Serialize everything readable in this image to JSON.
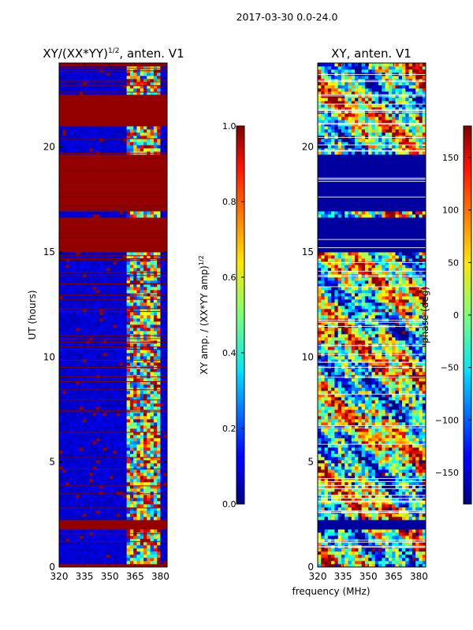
{
  "figure": {
    "suptitle": "2017-03-30 0.0-24.0",
    "xlabel_shared": "frequency (MHz)"
  },
  "chart_data": [
    {
      "type": "heatmap",
      "title": "XY/(XX*YY)",
      "title_superscript": "1/2",
      "title_suffix": ", anten. V1",
      "xlabel": "",
      "ylabel": "UT (hours)",
      "xlim": [
        320,
        384
      ],
      "ylim": [
        0,
        24
      ],
      "x_ticks": [
        320,
        335,
        350,
        365,
        380
      ],
      "y_ticks": [
        0,
        5,
        10,
        15,
        20
      ],
      "colormap": "jet",
      "colorbar": {
        "label": "XY amp. / (XX*YY amp)",
        "label_superscript": "1/2",
        "range": [
          0.0,
          1.0
        ],
        "ticks": [
          "0.0",
          "0.2",
          "0.4",
          "0.6",
          "0.8",
          "1.0"
        ],
        "tick_values": [
          0.0,
          0.2,
          0.4,
          0.6,
          0.8,
          1.0
        ]
      },
      "flagged_time_bands_hours": [
        [
          0.0,
          0.1
        ],
        [
          1.85,
          2.3
        ],
        [
          15.0,
          16.6
        ],
        [
          17.0,
          19.6
        ],
        [
          21.0,
          22.5
        ],
        [
          23.8,
          24.0
        ]
      ],
      "active_freq_range_MHz": [
        361,
        380
      ]
    },
    {
      "type": "heatmap",
      "title": "XY, anten. V1",
      "xlabel": "",
      "ylabel": "",
      "xlim": [
        320,
        384
      ],
      "ylim": [
        0,
        24
      ],
      "x_ticks": [
        320,
        335,
        350,
        365,
        380
      ],
      "y_ticks": [
        0,
        5,
        10,
        15,
        20
      ],
      "colormap": "jet",
      "colorbar": {
        "label": "phase (deg)",
        "range": [
          -180,
          180
        ],
        "ticks": [
          "150",
          "100",
          "50",
          "0",
          "−50",
          "−100",
          "−150"
        ],
        "tick_values": [
          150,
          100,
          50,
          0,
          -50,
          -100,
          -150
        ]
      },
      "flagged_time_bands_hours": [
        [
          1.85,
          2.3
        ],
        [
          15.0,
          16.6
        ],
        [
          17.0,
          19.6
        ]
      ]
    }
  ]
}
